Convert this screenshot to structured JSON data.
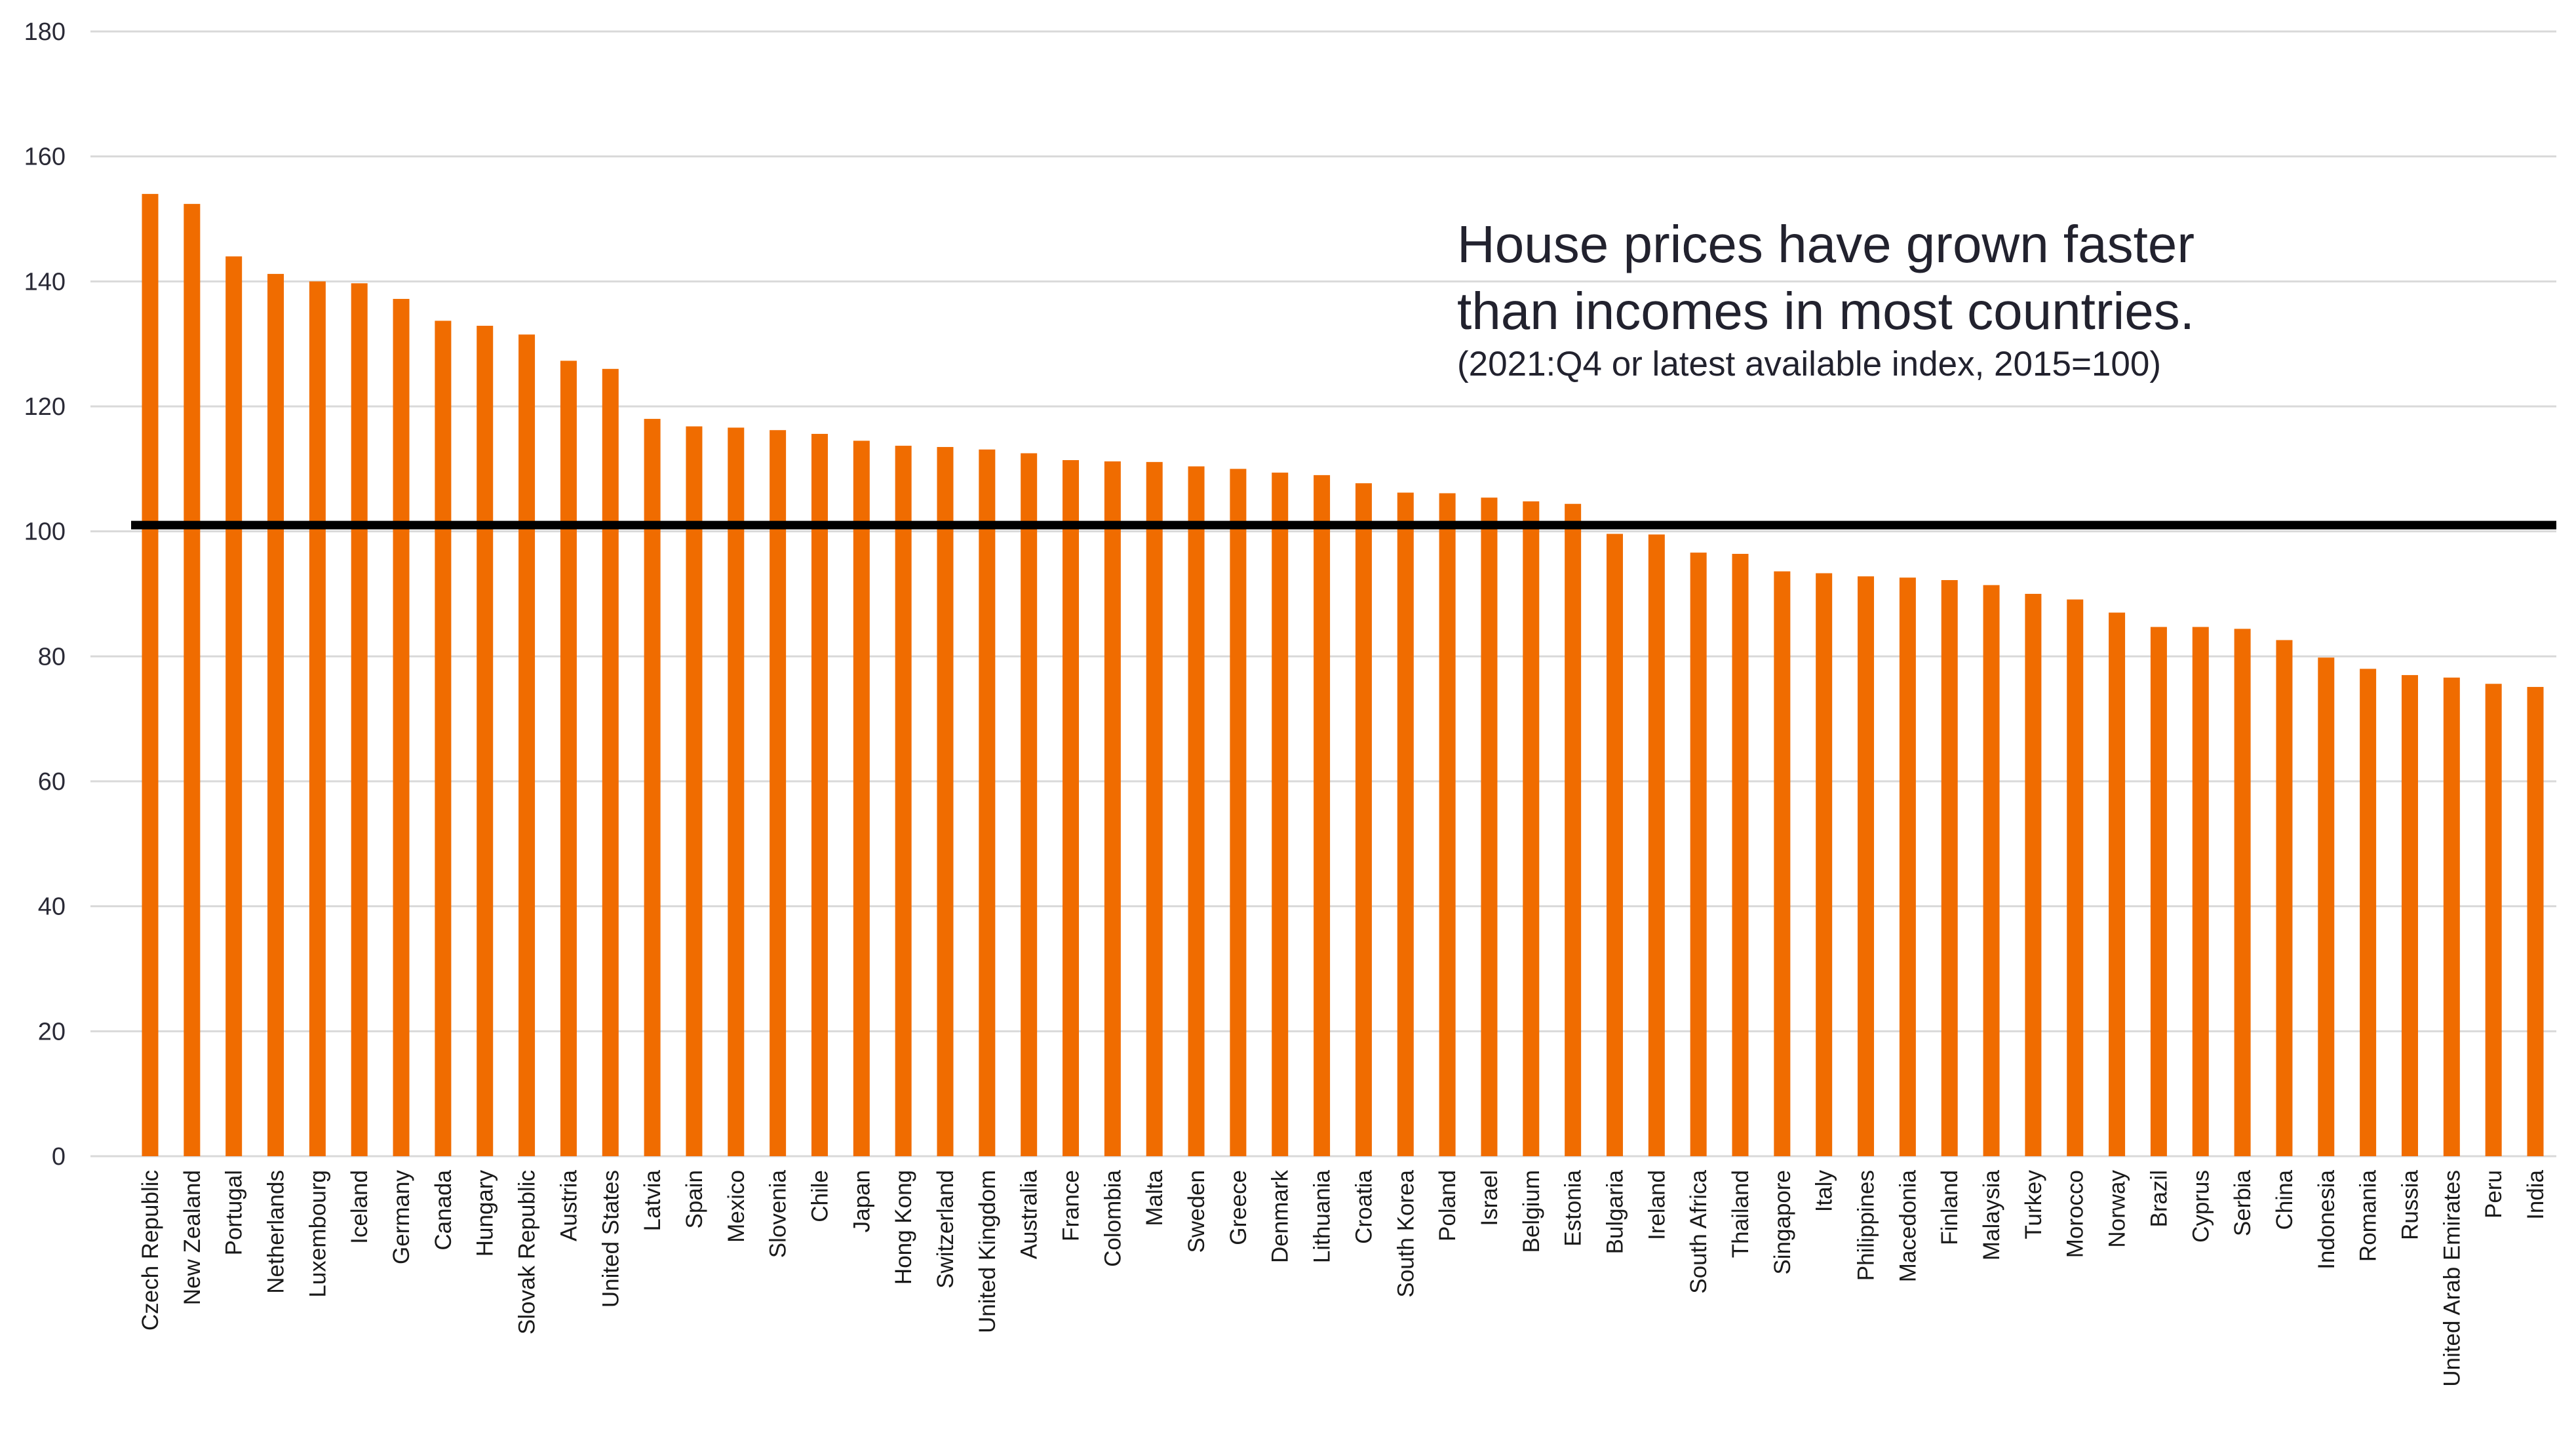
{
  "chart_data": {
    "type": "bar",
    "title": [
      "House prices have grown faster",
      "than incomes in most countries."
    ],
    "subtitle": "(2021:Q4 or latest available index, 2015=100)",
    "xlabel": "",
    "ylabel": "",
    "ylim": [
      0,
      180
    ],
    "yticks": [
      0,
      20,
      40,
      60,
      80,
      100,
      120,
      140,
      160,
      180
    ],
    "grid": true,
    "reference_line": 101,
    "bar_color": "#F06C00",
    "reference_color": "#000000",
    "categories": [
      "Czech Republic",
      "New Zealand",
      "Portugal",
      "Netherlands",
      "Luxembourg",
      "Iceland",
      "Germany",
      "Canada",
      "Hungary",
      "Slovak Republic",
      "Austria",
      "United States",
      "Latvia",
      "Spain",
      "Mexico",
      "Slovenia",
      "Chile",
      "Japan",
      "Hong Kong",
      "Switzerland",
      "United Kingdom",
      "Australia",
      "France",
      "Colombia",
      "Malta",
      "Sweden",
      "Greece",
      "Denmark",
      "Lithuania",
      "Croatia",
      "South Korea",
      "Poland",
      "Israel",
      "Belgium",
      "Estonia",
      "Bulgaria",
      "Ireland",
      "South Africa",
      "Thailand",
      "Singapore",
      "Italy",
      "Philippines",
      "Macedonia",
      "Finland",
      "Malaysia",
      "Turkey",
      "Morocco",
      "Norway",
      "Brazil",
      "Cyprus",
      "Serbia",
      "China",
      "Indonesia",
      "Romania",
      "Russia",
      "United Arab Emirates",
      "Peru",
      "India"
    ],
    "values": [
      154.0,
      152.4,
      144.0,
      141.2,
      140.0,
      139.7,
      137.2,
      133.7,
      132.9,
      131.5,
      127.3,
      126.0,
      118.0,
      116.8,
      116.6,
      116.2,
      115.6,
      114.5,
      113.7,
      113.5,
      113.1,
      112.5,
      111.4,
      111.2,
      111.1,
      110.4,
      110.0,
      109.4,
      109.0,
      107.7,
      106.2,
      106.1,
      105.4,
      104.8,
      104.4,
      99.6,
      99.5,
      96.6,
      96.4,
      93.6,
      93.3,
      92.8,
      92.6,
      92.2,
      91.4,
      90.0,
      89.1,
      87.0,
      84.7,
      84.7,
      84.4,
      82.6,
      79.8,
      78.0,
      77.0,
      76.6,
      75.6,
      75.1
    ]
  }
}
